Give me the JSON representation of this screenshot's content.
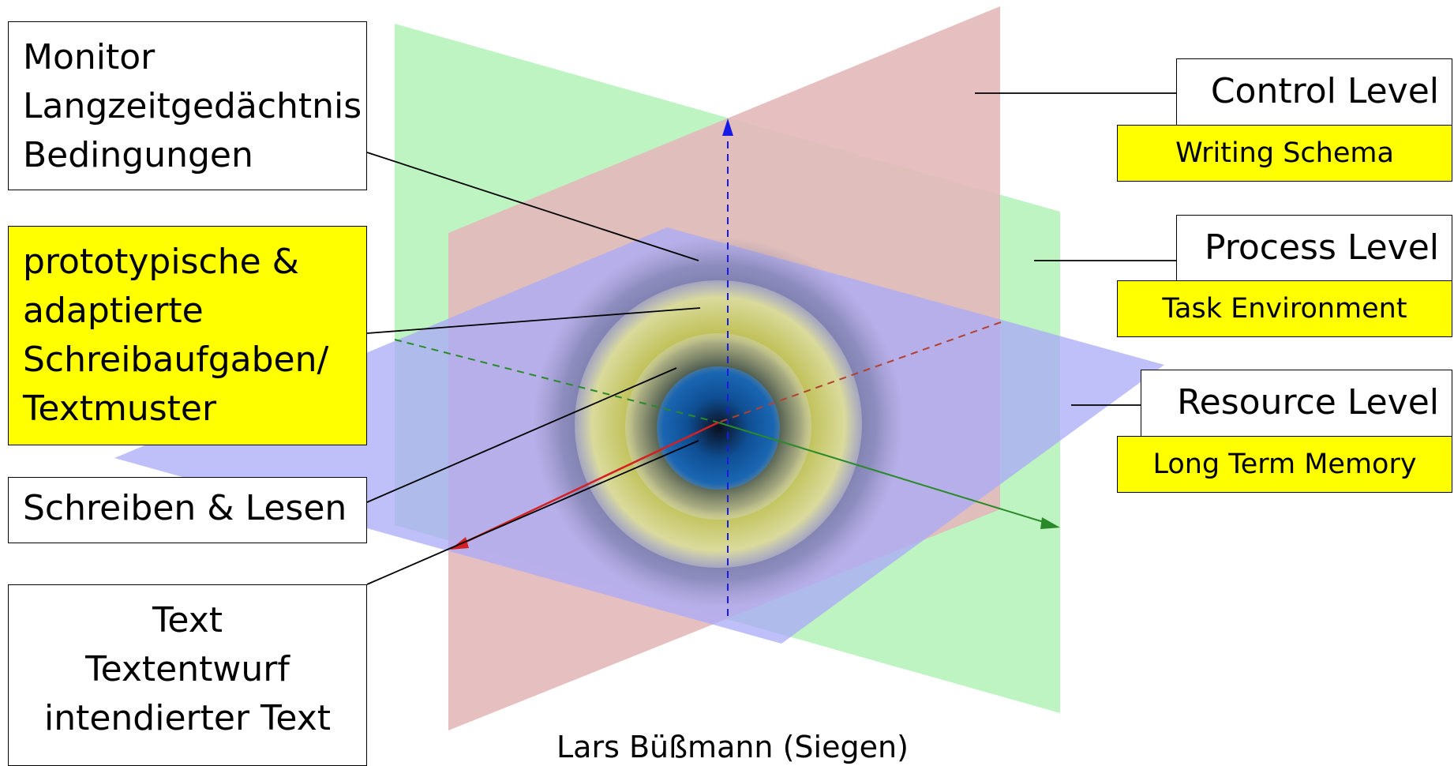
{
  "labels_left": {
    "monitor": [
      "Monitor",
      "Langzeitgedächtnis",
      "Bedingungen"
    ],
    "tasks": [
      "prototypische &",
      "adaptierte",
      "Schreibaufgaben/",
      "Textmuster"
    ],
    "writing": "Schreiben & Lesen",
    "text": [
      "Text",
      "Textentwurf",
      "intendierter Text"
    ]
  },
  "levels": [
    {
      "name": "Control Level",
      "tag": "Writing Schema"
    },
    {
      "name": "Process Level",
      "tag": "Task Environment"
    },
    {
      "name": "Resource Level",
      "tag": "Long Term Memory"
    }
  ],
  "credit": "Lars Büßmann (Siegen)",
  "colors": {
    "plane_red": "#e5b9bb",
    "plane_green": "#bef3c2",
    "plane_blue": "#b0b0f8",
    "highlight": "#ffff00",
    "axis_blue": "#1a1ae6",
    "axis_green": "#2a8a2a",
    "axis_red": "#d42020"
  }
}
